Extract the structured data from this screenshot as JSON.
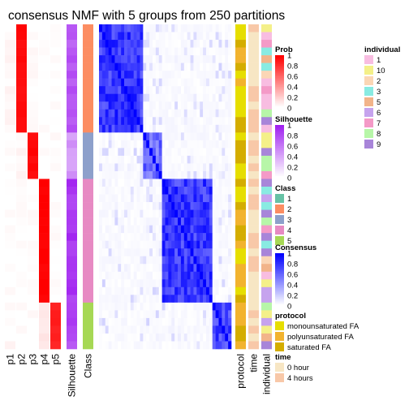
{
  "chart_data": {
    "type": "heatmap",
    "title": "consensus NMF with 5 groups from 250 partitions",
    "grid": false,
    "legend_placement": "right",
    "x_labels": [
      "p1",
      "p2",
      "p3",
      "p4",
      "p5",
      "Silhouette",
      "Class",
      "protocol",
      "time",
      "individual"
    ],
    "groups": [
      {
        "class": "2",
        "n": 14,
        "p": [
          0.03,
          0.96,
          0.01,
          0.0,
          0.0
        ],
        "sil": 0.75,
        "shuffle": 0.05
      },
      {
        "class": "3",
        "n": 6,
        "p": [
          0.0,
          0.03,
          0.97,
          0.0,
          0.0
        ],
        "sil": 0.45,
        "shuffle": 0.25
      },
      {
        "class": "4",
        "n": 16,
        "p": [
          0.0,
          0.0,
          0.0,
          1.0,
          0.0
        ],
        "sil": 0.9,
        "shuffle": 0.05
      },
      {
        "class": "5",
        "n": 6,
        "p": [
          0.02,
          0.0,
          0.0,
          0.1,
          0.88
        ],
        "sil": 0.82,
        "shuffle": 0.1
      }
    ],
    "legends": {
      "prob": {
        "title": "Prob",
        "ticks": [
          "1",
          "0.8",
          "0.6",
          "0.4",
          "0.2",
          "0"
        ],
        "colors": [
          "#ff0000",
          "#ffffff"
        ]
      },
      "silhouette": {
        "title": "Silhouette",
        "ticks": [
          "1",
          "0.8",
          "0.6",
          "0.4",
          "0.2",
          "0"
        ],
        "colors": [
          "#a020f0",
          "#ffffff"
        ]
      },
      "class": {
        "title": "Class",
        "items": [
          {
            "label": "1",
            "color": "#66c2a5"
          },
          {
            "label": "2",
            "color": "#fc8d62"
          },
          {
            "label": "3",
            "color": "#8da0cb"
          },
          {
            "label": "4",
            "color": "#e78ac3"
          },
          {
            "label": "5",
            "color": "#a6d854"
          }
        ]
      },
      "consensus": {
        "title": "Consensus",
        "ticks": [
          "1",
          "0.8",
          "0.6",
          "0.4",
          "0.2",
          "0"
        ],
        "colors": [
          "#0000ff",
          "#ffffff"
        ]
      },
      "protocol": {
        "title": "protocol",
        "items": [
          {
            "label": "monounsaturated FA",
            "color": "#e6de00"
          },
          {
            "label": "polyunsaturated FA",
            "color": "#f2b32e"
          },
          {
            "label": "saturated FA",
            "color": "#d4ad00"
          }
        ]
      },
      "time": {
        "title": "time",
        "items": [
          {
            "label": "0 hour",
            "color": "#f7e6c4"
          },
          {
            "label": "4 hours",
            "color": "#f8c8a8"
          }
        ]
      },
      "individual": {
        "title": "individual",
        "items": [
          {
            "label": "1",
            "color": "#f8bde1"
          },
          {
            "label": "10",
            "color": "#f4f089"
          },
          {
            "label": "2",
            "color": "#fbd6b5"
          },
          {
            "label": "3",
            "color": "#89ebe2"
          },
          {
            "label": "5",
            "color": "#f2b48a"
          },
          {
            "label": "6",
            "color": "#c6a3ee"
          },
          {
            "label": "7",
            "color": "#f49ac7"
          },
          {
            "label": "8",
            "color": "#b7f6a8"
          },
          {
            "label": "9",
            "color": "#a885d9"
          }
        ]
      }
    }
  }
}
